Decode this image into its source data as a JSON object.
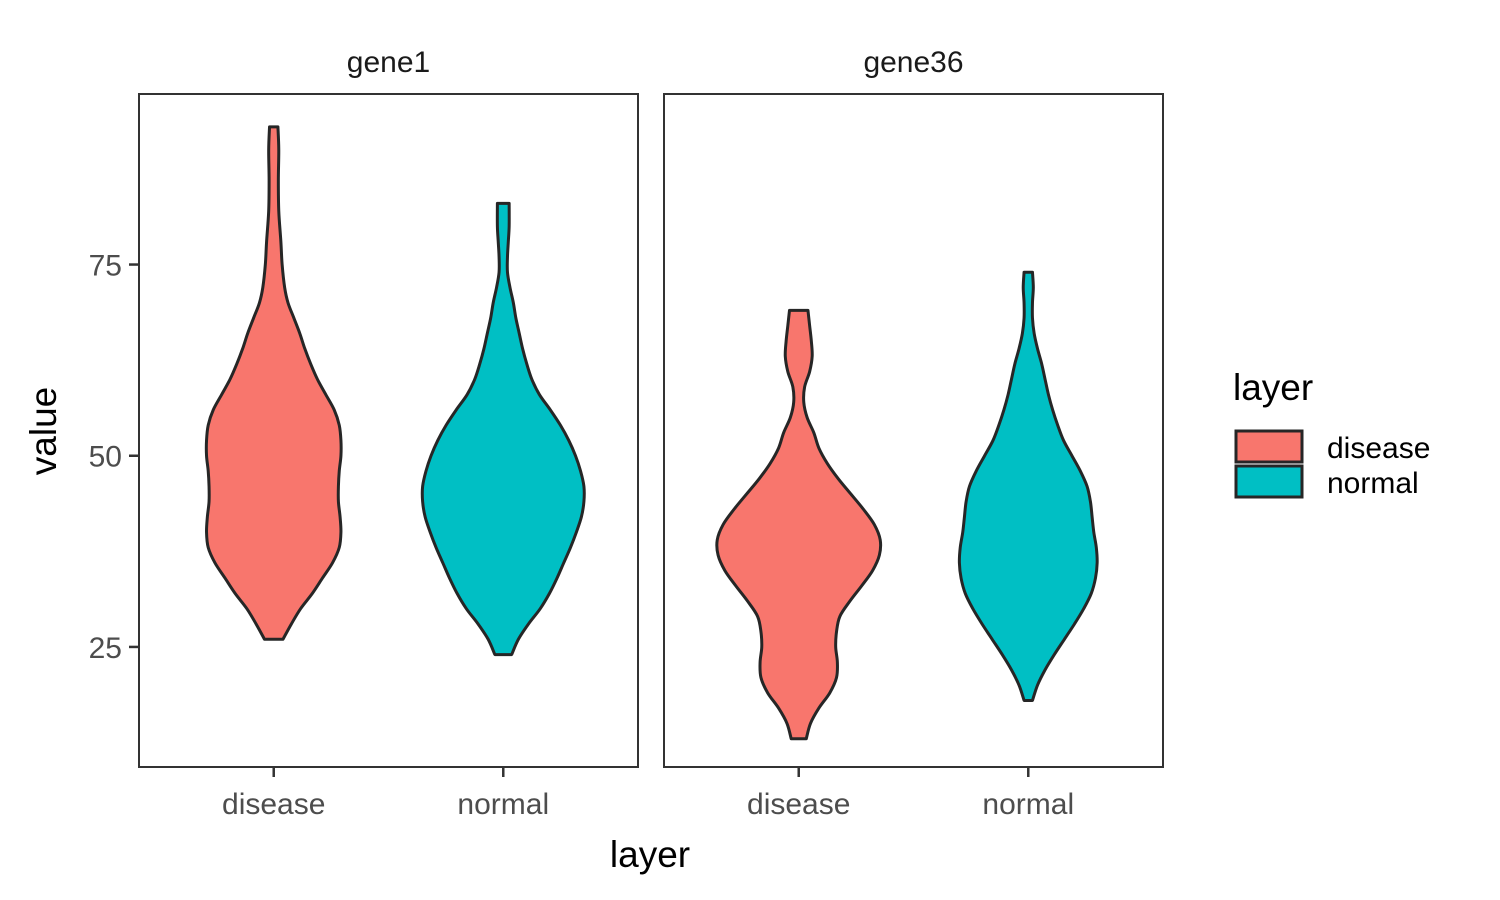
{
  "chart_data": {
    "type": "violin",
    "xlabel": "layer",
    "ylabel": "value",
    "categories": [
      "disease",
      "normal"
    ],
    "y_ticks": [
      25,
      50,
      75
    ],
    "ylim": [
      9.3,
      97.3
    ],
    "legend": {
      "title": "layer",
      "position": "right",
      "items": [
        {
          "label": "disease",
          "color": "#F8766D"
        },
        {
          "label": "normal",
          "color": "#00BFC4"
        }
      ]
    },
    "panels": [
      {
        "title": "gene1",
        "violins": [
          {
            "category": "disease",
            "color": "#F8766D",
            "min": 26,
            "max": 93,
            "profile": [
              [
                26,
                0.11
              ],
              [
                28,
                0.21
              ],
              [
                30,
                0.32
              ],
              [
                32,
                0.46
              ],
              [
                34,
                0.58
              ],
              [
                36,
                0.7
              ],
              [
                38,
                0.78
              ],
              [
                40,
                0.8
              ],
              [
                42,
                0.79
              ],
              [
                44,
                0.77
              ],
              [
                46,
                0.77
              ],
              [
                48,
                0.78
              ],
              [
                50,
                0.8
              ],
              [
                52,
                0.8
              ],
              [
                54,
                0.78
              ],
              [
                56,
                0.72
              ],
              [
                58,
                0.62
              ],
              [
                60,
                0.52
              ],
              [
                62,
                0.44
              ],
              [
                64,
                0.37
              ],
              [
                66,
                0.31
              ],
              [
                68,
                0.24
              ],
              [
                70,
                0.17
              ],
              [
                72,
                0.13
              ],
              [
                75,
                0.1
              ],
              [
                78,
                0.085
              ],
              [
                82,
                0.06
              ],
              [
                86,
                0.055
              ],
              [
                90,
                0.06
              ],
              [
                93,
                0.05
              ]
            ]
          },
          {
            "category": "normal",
            "color": "#00BFC4",
            "min": 24,
            "max": 83,
            "profile": [
              [
                24,
                0.1
              ],
              [
                26,
                0.18
              ],
              [
                28,
                0.3
              ],
              [
                30,
                0.44
              ],
              [
                32,
                0.55
              ],
              [
                34,
                0.64
              ],
              [
                36,
                0.72
              ],
              [
                38,
                0.8
              ],
              [
                40,
                0.87
              ],
              [
                42,
                0.93
              ],
              [
                44,
                0.96
              ],
              [
                46,
                0.96
              ],
              [
                48,
                0.92
              ],
              [
                50,
                0.86
              ],
              [
                52,
                0.78
              ],
              [
                54,
                0.68
              ],
              [
                56,
                0.56
              ],
              [
                58,
                0.43
              ],
              [
                60,
                0.34
              ],
              [
                62,
                0.28
              ],
              [
                64,
                0.23
              ],
              [
                66,
                0.19
              ],
              [
                68,
                0.15
              ],
              [
                70,
                0.12
              ],
              [
                72,
                0.08
              ],
              [
                74,
                0.05
              ],
              [
                76,
                0.05
              ],
              [
                78,
                0.06
              ],
              [
                80,
                0.07
              ],
              [
                83,
                0.07
              ]
            ]
          }
        ]
      },
      {
        "title": "gene36",
        "violins": [
          {
            "category": "disease",
            "color": "#F8766D",
            "min": 13,
            "max": 69,
            "profile": [
              [
                13,
                0.09
              ],
              [
                15,
                0.14
              ],
              [
                17,
                0.24
              ],
              [
                19,
                0.37
              ],
              [
                21,
                0.45
              ],
              [
                23,
                0.46
              ],
              [
                25,
                0.44
              ],
              [
                27,
                0.45
              ],
              [
                29,
                0.49
              ],
              [
                31,
                0.61
              ],
              [
                33,
                0.75
              ],
              [
                35,
                0.88
              ],
              [
                37,
                0.96
              ],
              [
                39,
                0.97
              ],
              [
                41,
                0.9
              ],
              [
                43,
                0.77
              ],
              [
                45,
                0.62
              ],
              [
                47,
                0.47
              ],
              [
                49,
                0.34
              ],
              [
                51,
                0.24
              ],
              [
                53,
                0.18
              ],
              [
                55,
                0.1
              ],
              [
                57,
                0.06
              ],
              [
                59,
                0.07
              ],
              [
                61,
                0.13
              ],
              [
                63,
                0.16
              ],
              [
                65,
                0.15
              ],
              [
                67,
                0.13
              ],
              [
                69,
                0.11
              ]
            ]
          },
          {
            "category": "normal",
            "color": "#00BFC4",
            "min": 18,
            "max": 74,
            "profile": [
              [
                18,
                0.05
              ],
              [
                20,
                0.11
              ],
              [
                22,
                0.2
              ],
              [
                24,
                0.31
              ],
              [
                26,
                0.43
              ],
              [
                28,
                0.55
              ],
              [
                30,
                0.66
              ],
              [
                32,
                0.75
              ],
              [
                34,
                0.8
              ],
              [
                36,
                0.82
              ],
              [
                38,
                0.81
              ],
              [
                40,
                0.78
              ],
              [
                42,
                0.76
              ],
              [
                44,
                0.74
              ],
              [
                46,
                0.7
              ],
              [
                48,
                0.62
              ],
              [
                50,
                0.52
              ],
              [
                52,
                0.42
              ],
              [
                54,
                0.35
              ],
              [
                56,
                0.29
              ],
              [
                58,
                0.24
              ],
              [
                60,
                0.2
              ],
              [
                62,
                0.16
              ],
              [
                64,
                0.11
              ],
              [
                66,
                0.07
              ],
              [
                68,
                0.05
              ],
              [
                70,
                0.05
              ],
              [
                72,
                0.06
              ],
              [
                74,
                0.05
              ]
            ]
          }
        ]
      }
    ]
  }
}
